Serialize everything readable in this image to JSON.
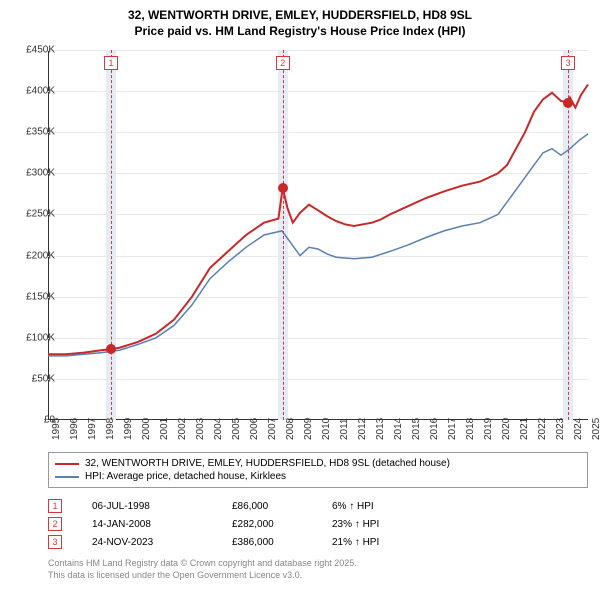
{
  "title_line1": "32, WENTWORTH DRIVE, EMLEY, HUDDERSFIELD, HD8 9SL",
  "title_line2": "Price paid vs. HM Land Registry's House Price Index (HPI)",
  "chart": {
    "type": "line",
    "background_color": "#ffffff",
    "grid_color": "#e8e8e8",
    "x_axis": {
      "min": 1995,
      "max": 2025,
      "ticks": [
        1995,
        1996,
        1997,
        1998,
        1999,
        2000,
        2001,
        2002,
        2003,
        2004,
        2005,
        2006,
        2007,
        2008,
        2009,
        2010,
        2011,
        2012,
        2013,
        2014,
        2015,
        2016,
        2017,
        2018,
        2019,
        2020,
        2021,
        2022,
        2023,
        2024,
        2025
      ]
    },
    "y_axis": {
      "min": 0,
      "max": 450000,
      "tick_step": 50000,
      "tick_labels": [
        "£0",
        "£50K",
        "£100K",
        "£150K",
        "£200K",
        "£250K",
        "£300K",
        "£350K",
        "£400K",
        "£450K"
      ]
    },
    "series": [
      {
        "id": "price_paid",
        "label": "32, WENTWORTH DRIVE, EMLEY, HUDDERSFIELD, HD8 9SL (detached house)",
        "color": "#c72828",
        "line_width": 2,
        "data": [
          [
            1995,
            80000
          ],
          [
            1996,
            80000
          ],
          [
            1997,
            82000
          ],
          [
            1998,
            85000
          ],
          [
            1998.5,
            86000
          ],
          [
            1999,
            88000
          ],
          [
            2000,
            95000
          ],
          [
            2001,
            105000
          ],
          [
            2002,
            122000
          ],
          [
            2003,
            150000
          ],
          [
            2004,
            185000
          ],
          [
            2005,
            205000
          ],
          [
            2006,
            225000
          ],
          [
            2007,
            240000
          ],
          [
            2007.8,
            245000
          ],
          [
            2008.04,
            282000
          ],
          [
            2008.3,
            258000
          ],
          [
            2008.6,
            240000
          ],
          [
            2009,
            252000
          ],
          [
            2009.5,
            262000
          ],
          [
            2010,
            255000
          ],
          [
            2010.5,
            248000
          ],
          [
            2011,
            242000
          ],
          [
            2011.5,
            238000
          ],
          [
            2012,
            236000
          ],
          [
            2012.5,
            238000
          ],
          [
            2013,
            240000
          ],
          [
            2013.5,
            244000
          ],
          [
            2014,
            250000
          ],
          [
            2015,
            260000
          ],
          [
            2016,
            270000
          ],
          [
            2017,
            278000
          ],
          [
            2018,
            285000
          ],
          [
            2019,
            290000
          ],
          [
            2020,
            300000
          ],
          [
            2020.5,
            310000
          ],
          [
            2021,
            330000
          ],
          [
            2021.5,
            350000
          ],
          [
            2022,
            375000
          ],
          [
            2022.5,
            390000
          ],
          [
            2023,
            398000
          ],
          [
            2023.5,
            388000
          ],
          [
            2023.9,
            386000
          ],
          [
            2024,
            392000
          ],
          [
            2024.3,
            380000
          ],
          [
            2024.6,
            395000
          ],
          [
            2025,
            408000
          ]
        ]
      },
      {
        "id": "hpi",
        "label": "HPI: Average price, detached house, Kirklees",
        "color": "#5b7fb3",
        "line_width": 1.5,
        "data": [
          [
            1995,
            78000
          ],
          [
            1996,
            78000
          ],
          [
            1997,
            80000
          ],
          [
            1998,
            82000
          ],
          [
            1999,
            85000
          ],
          [
            2000,
            92000
          ],
          [
            2001,
            100000
          ],
          [
            2002,
            115000
          ],
          [
            2003,
            140000
          ],
          [
            2004,
            172000
          ],
          [
            2005,
            192000
          ],
          [
            2006,
            210000
          ],
          [
            2007,
            225000
          ],
          [
            2008,
            230000
          ],
          [
            2008.5,
            215000
          ],
          [
            2009,
            200000
          ],
          [
            2009.5,
            210000
          ],
          [
            2010,
            208000
          ],
          [
            2010.5,
            202000
          ],
          [
            2011,
            198000
          ],
          [
            2012,
            196000
          ],
          [
            2013,
            198000
          ],
          [
            2014,
            205000
          ],
          [
            2015,
            213000
          ],
          [
            2016,
            222000
          ],
          [
            2017,
            230000
          ],
          [
            2018,
            236000
          ],
          [
            2019,
            240000
          ],
          [
            2020,
            250000
          ],
          [
            2021,
            280000
          ],
          [
            2022,
            310000
          ],
          [
            2022.5,
            325000
          ],
          [
            2023,
            330000
          ],
          [
            2023.5,
            322000
          ],
          [
            2024,
            330000
          ],
          [
            2024.5,
            340000
          ],
          [
            2025,
            348000
          ]
        ]
      }
    ],
    "events": [
      {
        "n": "1",
        "year": 1998.5,
        "y": 86000,
        "date": "06-JUL-1998",
        "price": "£86,000",
        "pct": "6% ↑ HPI"
      },
      {
        "n": "2",
        "year": 2008.04,
        "y": 282000,
        "date": "14-JAN-2008",
        "price": "£282,000",
        "pct": "23% ↑ HPI"
      },
      {
        "n": "3",
        "year": 2023.9,
        "y": 386000,
        "date": "24-NOV-2023",
        "price": "£386,000",
        "pct": "21% ↑ HPI"
      }
    ],
    "event_band_color": "#e6ecf5",
    "event_line_color": "#d43a3a"
  },
  "legend_series1": "32, WENTWORTH DRIVE, EMLEY, HUDDERSFIELD, HD8 9SL (detached house)",
  "legend_series2": "HPI: Average price, detached house, Kirklees",
  "attribution_line1": "Contains HM Land Registry data © Crown copyright and database right 2025.",
  "attribution_line2": "This data is licensed under the Open Government Licence v3.0."
}
